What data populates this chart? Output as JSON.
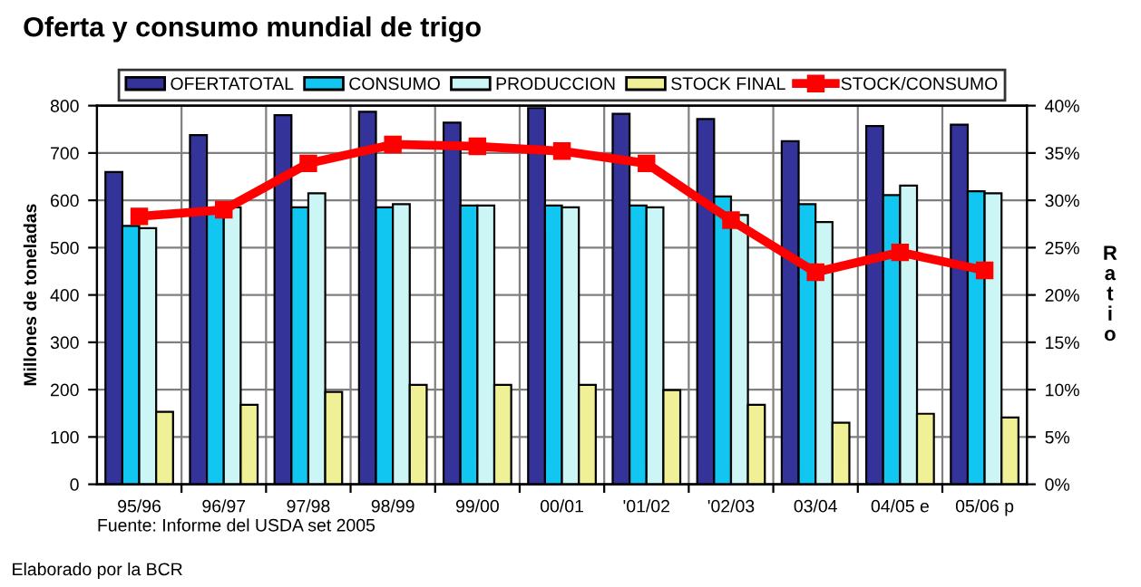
{
  "chart_data": {
    "type": "bar",
    "title": "Oferta y consumo mundial de trigo",
    "categories": [
      "95/96",
      "96/97",
      "97/98",
      "98/99",
      "99/00",
      "00/01",
      "'01/02",
      "'02/03",
      "03/04",
      "04/05 e",
      "05/06 p"
    ],
    "series": [
      {
        "name": "OFERTATOTAL",
        "color": "#333399",
        "values": [
          660,
          738,
          780,
          787,
          764,
          795,
          783,
          772,
          725,
          757,
          760
        ]
      },
      {
        "name": "CONSUMO",
        "color": "#11c6f0",
        "values": [
          546,
          582,
          585,
          585,
          589,
          589,
          589,
          608,
          592,
          611,
          619
        ]
      },
      {
        "name": "PRODUCCION",
        "color": "#ccf6f6",
        "values": [
          541,
          585,
          615,
          592,
          589,
          585,
          585,
          569,
          554,
          631,
          615
        ]
      },
      {
        "name": "STOCK FINAL",
        "color": "#f0f096",
        "values": [
          153,
          168,
          195,
          210,
          210,
          210,
          199,
          168,
          130,
          149,
          141
        ]
      },
      {
        "name": "STOCK/CONSUMO",
        "type": "line",
        "axis": "y2",
        "color": "#ff0000",
        "marker": "square",
        "line_style": "solid",
        "values": [
          28.3,
          29.0,
          33.9,
          35.9,
          35.7,
          35.2,
          33.9,
          27.9,
          22.4,
          24.5,
          22.6
        ]
      }
    ],
    "ylabel": "Millones de toneladas",
    "y2label": "Ratio",
    "ylim": [
      0,
      800
    ],
    "yticks": [
      0,
      100,
      200,
      300,
      400,
      500,
      600,
      700,
      800
    ],
    "y2lim": [
      0,
      40
    ],
    "y2ticks": [
      {
        "value": 0,
        "label": "0%"
      },
      {
        "value": 5,
        "label": "5%"
      },
      {
        "value": 10,
        "label": "10%"
      },
      {
        "value": 15,
        "label": "15%"
      },
      {
        "value": 20,
        "label": "20%"
      },
      {
        "value": 25,
        "label": "25%"
      },
      {
        "value": 30,
        "label": "30%"
      },
      {
        "value": 35,
        "label": "35%"
      },
      {
        "value": 40,
        "label": "40%"
      }
    ],
    "grid": true,
    "legend": "top",
    "annotations": [
      "Fuente: Informe del USDA set 2005",
      "Elaborado por la BCR"
    ]
  }
}
